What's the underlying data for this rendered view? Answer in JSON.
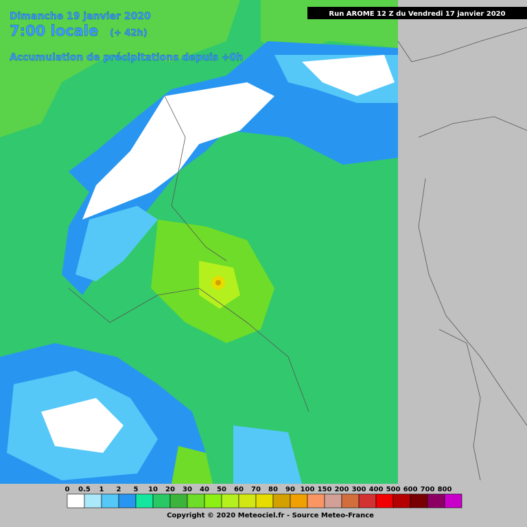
{
  "header": {
    "date": "Dimanche 19 janvier 2020",
    "time": "7:00 locale",
    "lead": "(+ 42h)",
    "product": "Accumulation de précipitations depuis +0h",
    "run": "Run AROME 12 Z du Vendredi 17 janvier 2020"
  },
  "legend": {
    "items": [
      {
        "label": "0",
        "color": "#ffffff"
      },
      {
        "label": "0.5",
        "color": "#aae8fa"
      },
      {
        "label": "1",
        "color": "#55c8f8"
      },
      {
        "label": "2",
        "color": "#2896f0"
      },
      {
        "label": "5",
        "color": "#14e6a0"
      },
      {
        "label": "10",
        "color": "#28c864"
      },
      {
        "label": "20",
        "color": "#3cb43c"
      },
      {
        "label": "30",
        "color": "#6edc28"
      },
      {
        "label": "40",
        "color": "#8cf014"
      },
      {
        "label": "50",
        "color": "#b4f01e"
      },
      {
        "label": "60",
        "color": "#d2e614"
      },
      {
        "label": "70",
        "color": "#e6dc00"
      },
      {
        "label": "80",
        "color": "#d2a000"
      },
      {
        "label": "90",
        "color": "#f0a000"
      },
      {
        "label": "100",
        "color": "#fa9664"
      },
      {
        "label": "150",
        "color": "#d2a096"
      },
      {
        "label": "200",
        "color": "#d26e3c"
      },
      {
        "label": "300",
        "color": "#d23232"
      },
      {
        "label": "400",
        "color": "#f00000"
      },
      {
        "label": "500",
        "color": "#b40000"
      },
      {
        "label": "600",
        "color": "#780000"
      },
      {
        "label": "700",
        "color": "#8c0064"
      },
      {
        "label": "800",
        "color": "#c800c8"
      }
    ]
  },
  "footer": {
    "copyright": "Copyright © 2020 Meteociel.fr - Source Meteo-France"
  }
}
